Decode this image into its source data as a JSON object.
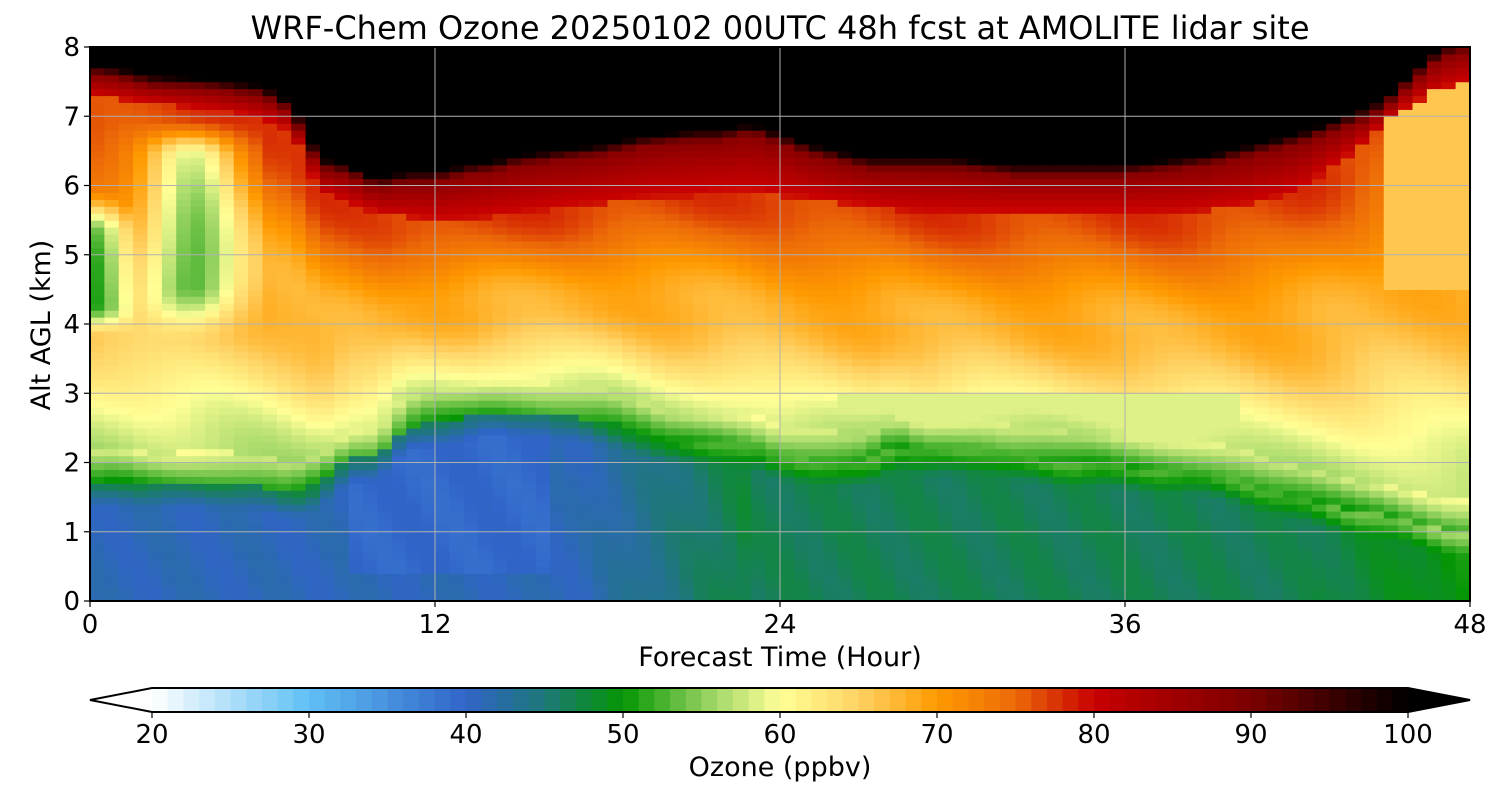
{
  "chart_data": {
    "type": "heatmap",
    "title": "WRF-Chem Ozone  20250102 00UTC 48h fcst at AMOLITE lidar site",
    "xlabel": "Forecast Time (Hour)",
    "ylabel": "Alt AGL (km)",
    "xlim": [
      0,
      48
    ],
    "ylim": [
      0,
      8
    ],
    "xticks": [
      0,
      12,
      24,
      36,
      48
    ],
    "yticks": [
      0,
      1,
      2,
      3,
      4,
      5,
      6,
      7,
      8
    ],
    "grid": true,
    "colorbar": {
      "label": "Ozone  (ppbv)",
      "min": 20,
      "max": 100,
      "ticks": [
        20,
        30,
        40,
        50,
        60,
        70,
        80,
        90,
        100
      ],
      "extend": "both",
      "color_stops": [
        [
          20,
          "#ffffff"
        ],
        [
          30,
          "#5fbff4"
        ],
        [
          40,
          "#3064c8"
        ],
        [
          45,
          "#1e7878"
        ],
        [
          50,
          "#049604"
        ],
        [
          56,
          "#a6d96a"
        ],
        [
          60,
          "#ffff96"
        ],
        [
          65,
          "#ffd264"
        ],
        [
          70,
          "#ff9a00"
        ],
        [
          75,
          "#ec6a08"
        ],
        [
          80,
          "#c80000"
        ],
        [
          90,
          "#7a0000"
        ],
        [
          100,
          "#000000"
        ]
      ]
    },
    "hours": [
      0,
      1,
      2,
      3,
      4,
      5,
      6,
      7,
      8,
      9,
      10,
      11,
      12,
      13,
      14,
      15,
      16,
      17,
      18,
      19,
      20,
      21,
      22,
      23,
      24,
      25,
      26,
      27,
      28,
      29,
      30,
      31,
      32,
      33,
      34,
      35,
      36,
      37,
      38,
      39,
      40,
      41,
      42,
      43,
      44,
      45,
      46,
      47,
      48
    ],
    "boundary_heights_km": {
      "surface_layer_top": [
        1.7,
        1.75,
        1.7,
        1.7,
        1.72,
        1.7,
        1.65,
        1.55,
        1.7,
        2.05,
        2.1,
        2.5,
        2.6,
        2.65,
        2.75,
        2.75,
        2.7,
        2.65,
        2.6,
        2.45,
        2.3,
        2.3,
        2.3,
        2.25,
        2.1,
        2.05,
        2.0,
        2.0,
        2.25,
        2.15,
        2.2,
        2.2,
        2.1,
        2.05,
        2.0,
        2.0,
        1.95,
        1.92,
        1.9,
        1.85,
        1.75,
        1.6,
        1.5,
        1.4,
        1.3,
        1.25,
        1.15,
        1.05,
        1.0
      ],
      "red_layer_bottom": [
        7.3,
        7.25,
        7.2,
        7.15,
        7.1,
        7.05,
        6.95,
        6.8,
        5.9,
        5.75,
        5.6,
        5.55,
        5.5,
        5.5,
        5.55,
        5.6,
        5.65,
        5.7,
        5.75,
        5.8,
        5.85,
        5.85,
        5.9,
        5.9,
        5.85,
        5.8,
        5.75,
        5.7,
        5.65,
        5.6,
        5.6,
        5.6,
        5.6,
        5.6,
        5.6,
        5.6,
        5.6,
        5.6,
        5.6,
        5.65,
        5.7,
        5.8,
        5.9,
        6.2,
        6.5,
        6.9,
        7.2,
        7.4,
        7.5
      ],
      "black_layer_bottom": [
        7.6,
        7.55,
        7.45,
        7.42,
        7.4,
        7.35,
        7.3,
        7.05,
        6.25,
        6.15,
        5.95,
        6.05,
        6.05,
        6.15,
        6.2,
        6.3,
        6.35,
        6.4,
        6.45,
        6.55,
        6.6,
        6.65,
        6.65,
        6.75,
        6.6,
        6.45,
        6.35,
        6.25,
        6.25,
        6.25,
        6.25,
        6.2,
        6.15,
        6.15,
        6.15,
        6.15,
        6.15,
        6.2,
        6.25,
        6.3,
        6.4,
        6.5,
        6.6,
        6.75,
        6.9,
        7.1,
        7.5,
        7.85,
        7.95
      ]
    }
  }
}
